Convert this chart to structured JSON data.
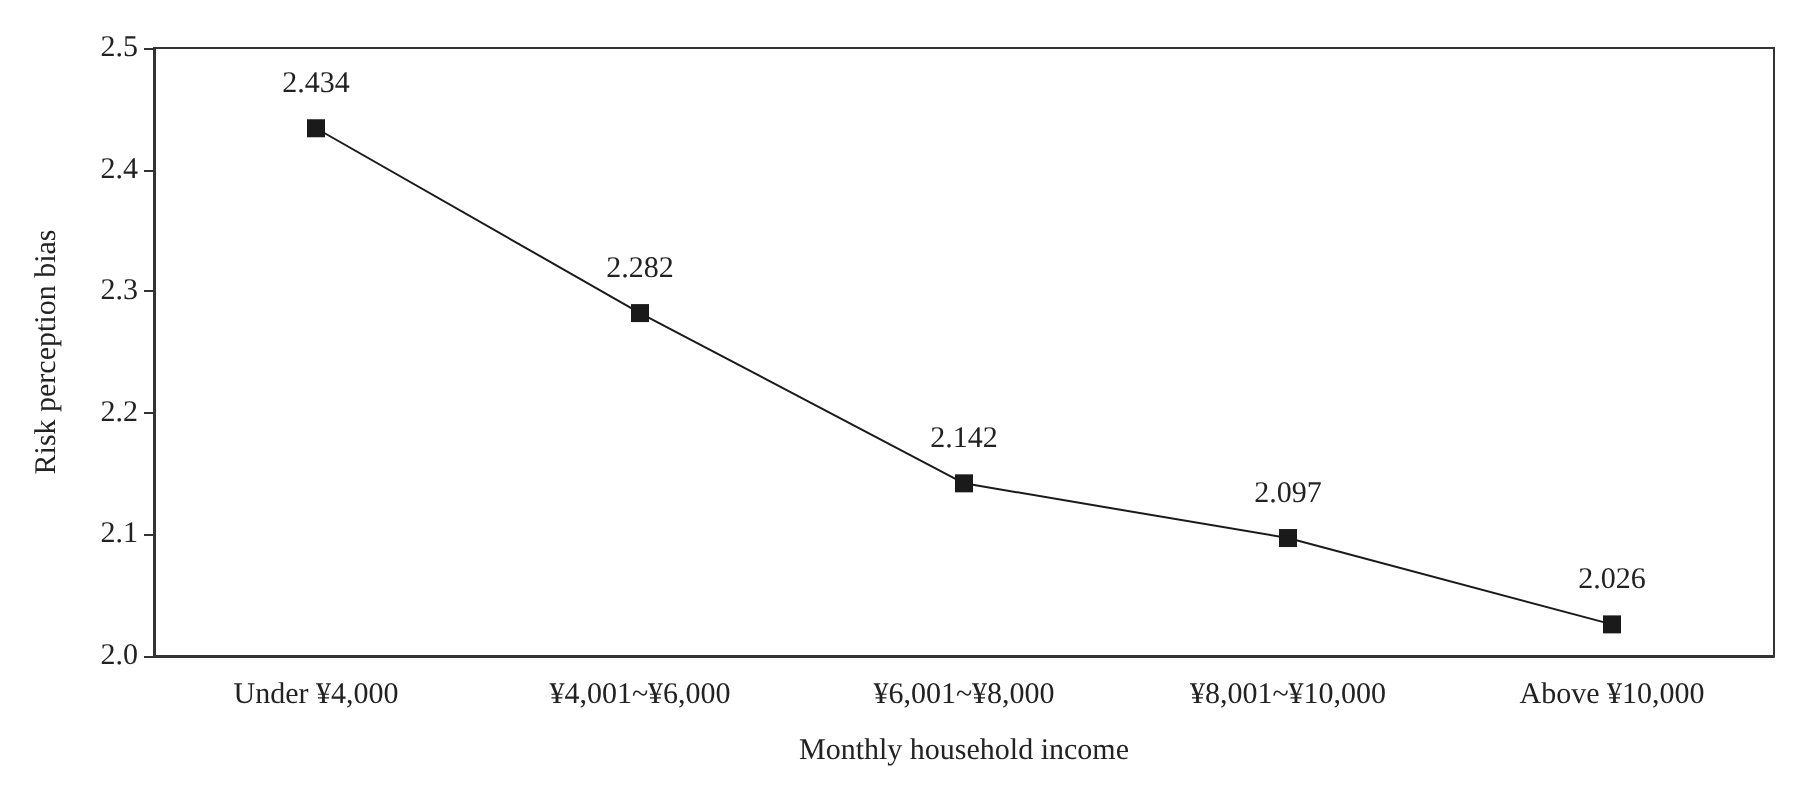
{
  "chart_data": {
    "type": "line",
    "xlabel": "Monthly household income",
    "ylabel": "Risk perception bias",
    "categories": [
      "Under ¥4,000",
      "¥4,001~¥6,000",
      "¥6,001~¥8,000",
      "¥8,001~¥10,000",
      "Above ¥10,000"
    ],
    "series": [
      {
        "color": "#1a1a1a",
        "values": [
          2.434,
          2.282,
          2.142,
          2.097,
          2.026
        ]
      }
    ],
    "ylim": [
      2.0,
      2.5
    ],
    "yticks": [
      {
        "value": 2.0,
        "label": "2.0"
      },
      2.1,
      2.2,
      2.3,
      2.4,
      2.5
    ],
    "grid": false,
    "marker": "square",
    "line_style": "solid",
    "data_labels": true
  }
}
